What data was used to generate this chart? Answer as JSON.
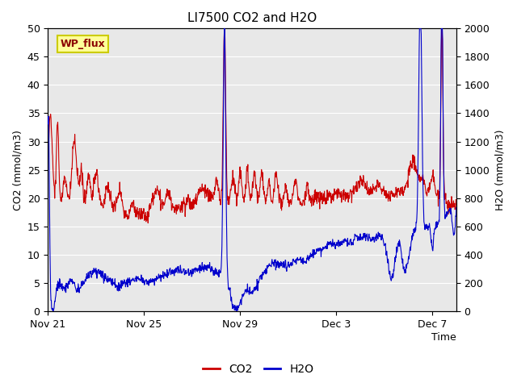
{
  "title": "LI7500 CO2 and H2O",
  "xlabel": "Time",
  "ylabel_left": "CO2 (mmol/m3)",
  "ylabel_right": "H2O (mmol/m3)",
  "ylim_left": [
    0,
    50
  ],
  "ylim_right": [
    0,
    2000
  ],
  "yticks_left": [
    0,
    5,
    10,
    15,
    20,
    25,
    30,
    35,
    40,
    45,
    50
  ],
  "yticks_right": [
    0,
    200,
    400,
    600,
    800,
    1000,
    1200,
    1400,
    1600,
    1800,
    2000
  ],
  "xtick_labels": [
    "Nov 21",
    "Nov 25",
    "Nov 29",
    "Dec 3",
    "Dec 7"
  ],
  "xtick_positions": [
    0,
    4,
    8,
    12,
    16
  ],
  "xlim": [
    0,
    17
  ],
  "co2_color": "#cc0000",
  "h2o_color": "#0000cc",
  "plot_bg_color": "#e8e8e8",
  "grid_color": "#ffffff",
  "legend_label_co2": "CO2",
  "legend_label_h2o": "H2O",
  "watermark_text": "WP_flux",
  "watermark_color": "#8b0000",
  "watermark_bg": "#ffff99",
  "watermark_border": "#cccc00",
  "title_fontsize": 11,
  "axis_label_fontsize": 9,
  "tick_fontsize": 9,
  "legend_fontsize": 10,
  "linewidth": 0.8
}
